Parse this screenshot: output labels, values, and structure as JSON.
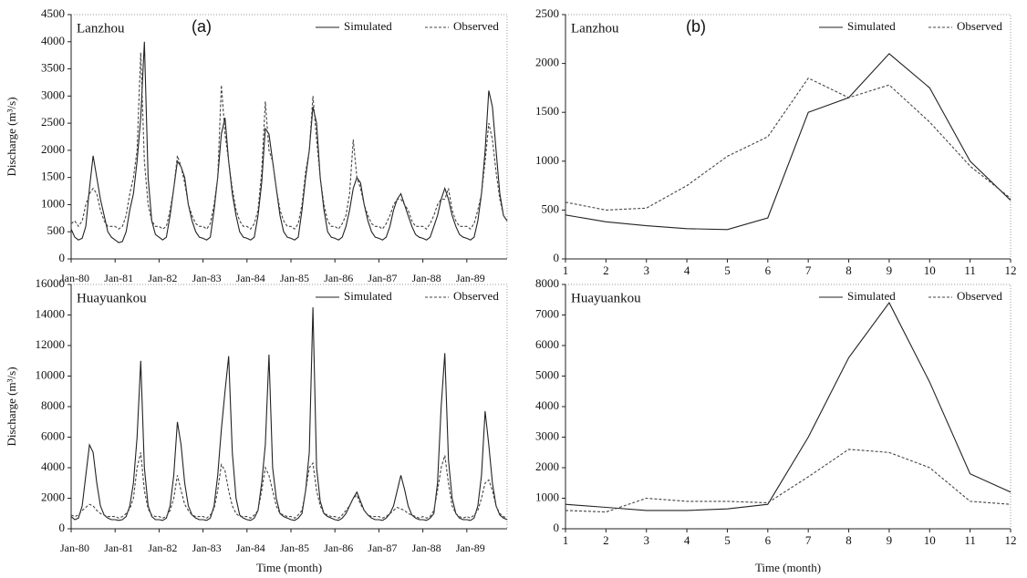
{
  "chart_data": [
    {
      "type": "line",
      "title": "Lanzhou",
      "annotation": "(a)",
      "ylabel": "Discharge (m³/s)",
      "categories": [
        "Jan-80",
        null,
        null,
        null,
        null,
        null,
        null,
        null,
        null,
        null,
        null,
        null,
        "Jan-81",
        null,
        null,
        null,
        null,
        null,
        null,
        null,
        null,
        null,
        null,
        null,
        "Jan-82",
        null,
        null,
        null,
        null,
        null,
        null,
        null,
        null,
        null,
        null,
        null,
        "Jan-83",
        null,
        null,
        null,
        null,
        null,
        null,
        null,
        null,
        null,
        null,
        null,
        "Jan-84",
        null,
        null,
        null,
        null,
        null,
        null,
        null,
        null,
        null,
        null,
        null,
        "Jan-85",
        null,
        null,
        null,
        null,
        null,
        null,
        null,
        null,
        null,
        null,
        null,
        "Jan-86",
        null,
        null,
        null,
        null,
        null,
        null,
        null,
        null,
        null,
        null,
        null,
        "Jan-87",
        null,
        null,
        null,
        null,
        null,
        null,
        null,
        null,
        null,
        null,
        null,
        "Jan-88",
        null,
        null,
        null,
        null,
        null,
        null,
        null,
        null,
        null,
        null,
        null,
        "Jan-89",
        null,
        null,
        null,
        null,
        null,
        null,
        null,
        null,
        null,
        null,
        null
      ],
      "series": [
        {
          "name": "Simulated",
          "color": "#222222",
          "linestyle": "solid",
          "values": [
            550,
            400,
            350,
            380,
            600,
            1300,
            1900,
            1500,
            1100,
            800,
            500,
            400,
            350,
            300,
            320,
            500,
            900,
            1200,
            1800,
            2600,
            4000,
            1500,
            700,
            450,
            400,
            350,
            400,
            800,
            1300,
            1800,
            1700,
            1500,
            1000,
            700,
            500,
            400,
            380,
            350,
            400,
            900,
            1500,
            2300,
            2600,
            1800,
            1200,
            800,
            500,
            400,
            380,
            350,
            400,
            800,
            1400,
            2400,
            2300,
            1800,
            1300,
            800,
            500,
            400,
            380,
            350,
            400,
            900,
            1500,
            2000,
            2800,
            2500,
            1500,
            900,
            500,
            400,
            380,
            350,
            400,
            600,
            900,
            1300,
            1500,
            1400,
            1000,
            700,
            500,
            400,
            380,
            350,
            400,
            600,
            900,
            1100,
            1200,
            1000,
            800,
            600,
            450,
            400,
            380,
            350,
            400,
            600,
            800,
            1100,
            1300,
            1100,
            800,
            600,
            450,
            400,
            380,
            350,
            400,
            700,
            1200,
            2000,
            3100,
            2800,
            2000,
            1200,
            800,
            700
          ]
        },
        {
          "name": "Observed",
          "color": "#444444",
          "linestyle": "dashed",
          "values": [
            650,
            700,
            600,
            700,
            1000,
            1200,
            1300,
            1200,
            900,
            700,
            600,
            600,
            600,
            550,
            600,
            800,
            1200,
            1500,
            2000,
            3800,
            1800,
            1000,
            700,
            600,
            600,
            550,
            600,
            900,
            1300,
            1900,
            1700,
            1400,
            1000,
            800,
            650,
            600,
            600,
            550,
            650,
            1000,
            1500,
            3200,
            2300,
            1800,
            1300,
            900,
            700,
            600,
            600,
            550,
            650,
            900,
            1600,
            2900,
            2000,
            1800,
            1300,
            900,
            700,
            600,
            600,
            550,
            650,
            1000,
            1600,
            2000,
            3000,
            2200,
            1500,
            1000,
            700,
            600,
            600,
            550,
            650,
            800,
            1200,
            2200,
            1500,
            1300,
            1000,
            800,
            650,
            600,
            600,
            550,
            650,
            800,
            1000,
            1100,
            1100,
            1000,
            900,
            700,
            600,
            600,
            600,
            550,
            650,
            800,
            1000,
            1100,
            1100,
            1300,
            900,
            700,
            600,
            600,
            600,
            550,
            650,
            900,
            1200,
            1800,
            2500,
            2200,
            1600,
            1100,
            800,
            700
          ]
        }
      ],
      "ylim": [
        0,
        4500
      ],
      "yticks": [
        0,
        500,
        1000,
        1500,
        2000,
        2500,
        3000,
        3500,
        4000,
        4500
      ]
    },
    {
      "type": "line",
      "title": "Lanzhou",
      "annotation": "(b)",
      "x": [
        1,
        2,
        3,
        4,
        5,
        6,
        7,
        8,
        9,
        10,
        11,
        12
      ],
      "series": [
        {
          "name": "Simulated",
          "color": "#222222",
          "linestyle": "solid",
          "values": [
            450,
            380,
            340,
            310,
            300,
            420,
            1500,
            1650,
            2100,
            1750,
            1000,
            600
          ]
        },
        {
          "name": "Observed",
          "color": "#444444",
          "linestyle": "dashed",
          "values": [
            580,
            500,
            520,
            750,
            1050,
            1250,
            1850,
            1650,
            1780,
            1400,
            950,
            620
          ]
        }
      ],
      "xlim": [
        1,
        12
      ],
      "xticks": [
        1,
        2,
        3,
        4,
        5,
        6,
        7,
        8,
        9,
        10,
        11,
        12
      ],
      "ylim": [
        0,
        2500
      ],
      "yticks": [
        0,
        500,
        1000,
        1500,
        2000,
        2500
      ]
    },
    {
      "type": "line",
      "title": "Huayuankou",
      "ylabel": "Discharge (m³/s)",
      "xlabel": "Time (month)",
      "categories": [
        "Jan-80",
        null,
        null,
        null,
        null,
        null,
        null,
        null,
        null,
        null,
        null,
        null,
        "Jan-81",
        null,
        null,
        null,
        null,
        null,
        null,
        null,
        null,
        null,
        null,
        null,
        "Jan-82",
        null,
        null,
        null,
        null,
        null,
        null,
        null,
        null,
        null,
        null,
        null,
        "Jan-83",
        null,
        null,
        null,
        null,
        null,
        null,
        null,
        null,
        null,
        null,
        null,
        "Jan-84",
        null,
        null,
        null,
        null,
        null,
        null,
        null,
        null,
        null,
        null,
        null,
        "Jan-85",
        null,
        null,
        null,
        null,
        null,
        null,
        null,
        null,
        null,
        null,
        null,
        "Jan-86",
        null,
        null,
        null,
        null,
        null,
        null,
        null,
        null,
        null,
        null,
        null,
        "Jan-87",
        null,
        null,
        null,
        null,
        null,
        null,
        null,
        null,
        null,
        null,
        null,
        "Jan-88",
        null,
        null,
        null,
        null,
        null,
        null,
        null,
        null,
        null,
        null,
        null,
        "Jan-89",
        null,
        null,
        null,
        null,
        null,
        null,
        null,
        null,
        null,
        null,
        null
      ],
      "series": [
        {
          "name": "Simulated",
          "color": "#222222",
          "linestyle": "solid",
          "values": [
            800,
            600,
            700,
            1500,
            3500,
            5500,
            5000,
            3000,
            1500,
            900,
            700,
            600,
            600,
            550,
            600,
            800,
            1500,
            3000,
            6000,
            11000,
            4000,
            1500,
            800,
            600,
            600,
            550,
            700,
            1500,
            3500,
            7000,
            5500,
            3000,
            1500,
            900,
            700,
            600,
            600,
            550,
            700,
            1500,
            3500,
            6500,
            9000,
            11300,
            5000,
            2000,
            900,
            700,
            600,
            550,
            700,
            1200,
            3000,
            5500,
            11400,
            4000,
            2000,
            1000,
            800,
            700,
            600,
            550,
            700,
            1000,
            2500,
            5000,
            14500,
            4000,
            1800,
            1000,
            800,
            700,
            600,
            550,
            700,
            1000,
            1500,
            2000,
            2400,
            1800,
            1200,
            900,
            700,
            600,
            600,
            550,
            700,
            1000,
            1500,
            2500,
            3500,
            2600,
            1500,
            900,
            700,
            600,
            600,
            550,
            700,
            1000,
            3000,
            8000,
            11500,
            4500,
            2000,
            1000,
            700,
            600,
            600,
            550,
            700,
            1500,
            3500,
            7700,
            5500,
            3000,
            1500,
            900,
            700,
            600
          ]
        },
        {
          "name": "Observed",
          "color": "#444444",
          "linestyle": "dashed",
          "values": [
            900,
            800,
            900,
            1200,
            1400,
            1600,
            1500,
            1200,
            1000,
            900,
            800,
            800,
            800,
            700,
            800,
            1000,
            1300,
            2000,
            4000,
            5000,
            2500,
            1300,
            900,
            800,
            800,
            700,
            800,
            1200,
            2000,
            3500,
            2500,
            1600,
            1200,
            900,
            800,
            800,
            800,
            700,
            900,
            1300,
            2500,
            4200,
            3800,
            2500,
            1500,
            1000,
            800,
            800,
            800,
            700,
            900,
            1200,
            2500,
            4000,
            3500,
            2500,
            1500,
            1000,
            900,
            800,
            800,
            700,
            900,
            1200,
            2500,
            4000,
            4300,
            2500,
            1500,
            1000,
            900,
            800,
            800,
            700,
            900,
            1200,
            1500,
            2000,
            2200,
            1600,
            1200,
            900,
            800,
            800,
            800,
            700,
            800,
            1000,
            1200,
            1400,
            1300,
            1200,
            1000,
            900,
            800,
            700,
            800,
            700,
            800,
            1200,
            2500,
            4000,
            4800,
            3000,
            1500,
            1000,
            800,
            700,
            800,
            700,
            900,
            1200,
            2000,
            3000,
            3200,
            2500,
            1500,
            1000,
            800,
            700
          ]
        }
      ],
      "ylim": [
        0,
        16000
      ],
      "yticks": [
        0,
        2000,
        4000,
        6000,
        8000,
        10000,
        12000,
        14000,
        16000
      ]
    },
    {
      "type": "line",
      "title": "Huayuankou",
      "xlabel": "Time (month)",
      "x": [
        1,
        2,
        3,
        4,
        5,
        6,
        7,
        8,
        9,
        10,
        11,
        12
      ],
      "series": [
        {
          "name": "Simulated",
          "color": "#222222",
          "linestyle": "solid",
          "values": [
            800,
            700,
            600,
            600,
            650,
            800,
            3000,
            5600,
            7400,
            4800,
            1800,
            1200
          ]
        },
        {
          "name": "Observed",
          "color": "#444444",
          "linestyle": "dashed",
          "values": [
            600,
            550,
            1000,
            900,
            900,
            850,
            1700,
            2600,
            2500,
            2000,
            900,
            800
          ]
        }
      ],
      "xlim": [
        1,
        12
      ],
      "xticks": [
        1,
        2,
        3,
        4,
        5,
        6,
        7,
        8,
        9,
        10,
        11,
        12
      ],
      "ylim": [
        0,
        8000
      ],
      "yticks": [
        0,
        1000,
        2000,
        3000,
        4000,
        5000,
        6000,
        7000,
        8000
      ]
    }
  ]
}
